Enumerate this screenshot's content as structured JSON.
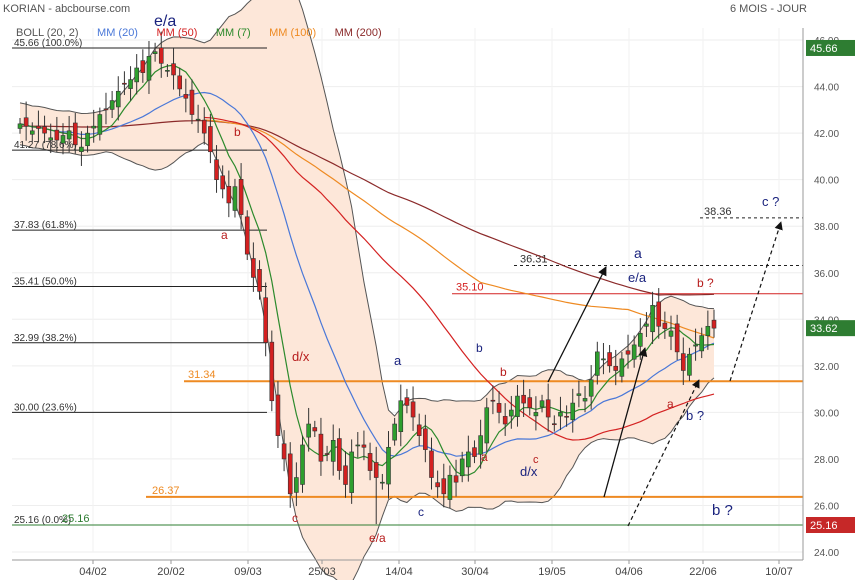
{
  "header": {
    "title": "KORIAN - abcbourse.com",
    "period": "6 MOIS - JOUR"
  },
  "indicators": [
    {
      "label": "BOLL (20, 2)",
      "color": "#555555"
    },
    {
      "label": "MM (20)",
      "color": "#4a78d8"
    },
    {
      "label": "MM (50)",
      "color": "#d42222"
    },
    {
      "label": "MM (7)",
      "color": "#2c8a2c"
    },
    {
      "label": "MM (100)",
      "color": "#ee8a22"
    },
    {
      "label": "MM (200)",
      "color": "#8b2a2a"
    }
  ],
  "colors": {
    "up": "#2e9e2e",
    "down": "#d42020",
    "boll_fill": "#fde7d9",
    "boll_line": "#555555",
    "mm7": "#2c8a2c",
    "mm20": "#4a78d8",
    "mm50": "#d42222",
    "mm100": "#ee8a22",
    "mm200": "#8b2a2a",
    "support": "#ee8a22",
    "last_price_bg": "#2e7d32",
    "low_price_bg": "#c62828",
    "wave_dark": "#1a237e",
    "wave_red": "#b71c1c"
  },
  "chart_data": {
    "type": "candlestick",
    "title": "KORIAN - abcbourse.com",
    "period": "6 MOIS - JOUR",
    "ylim": [
      24,
      46
    ],
    "y_ticks": [
      "24.00",
      "26.00",
      "28.00",
      "30.00",
      "32.00",
      "34.00",
      "36.00",
      "38.00",
      "40.00",
      "42.00",
      "44.00",
      "46.00"
    ],
    "x_ticks": [
      "04/02",
      "20/02",
      "09/03",
      "25/03",
      "14/04",
      "30/04",
      "19/05",
      "04/06",
      "22/06",
      "10/07"
    ],
    "last_price": "45.66",
    "last_close": "33.62",
    "low_price": "25.16",
    "fibonacci": [
      {
        "label": "45.66 (100.0%)",
        "value": 45.66
      },
      {
        "label": "41.27 (78.6%)",
        "value": 41.27
      },
      {
        "label": "37.83 (61.8%)",
        "value": 37.83
      },
      {
        "label": "35.41 (50.0%)",
        "value": 35.41
      },
      {
        "label": "32.99 (38.2%)",
        "value": 32.99
      },
      {
        "label": "30.00 (23.6%)",
        "value": 30.0
      },
      {
        "label": "25.16 (0.0%)",
        "value": 25.16
      }
    ],
    "levels": [
      {
        "label": "31.34",
        "value": 31.34
      },
      {
        "label": "26.37",
        "value": 26.37
      },
      {
        "label": "35.10",
        "value": 35.1
      },
      {
        "label": "36.31",
        "value": 36.31
      },
      {
        "label": "38.36",
        "value": 38.36
      },
      {
        "label": "25.16",
        "value": 25.16
      }
    ],
    "wave_labels": [
      "e/a",
      "b",
      "a",
      "d/x",
      "c",
      "a",
      "e/a",
      "b",
      "c",
      "b",
      "a",
      "c",
      "d/x",
      "a",
      "e/a",
      "b ?",
      "a",
      "b ?",
      "c ?",
      "b ?"
    ],
    "close": [
      42.4,
      42.3,
      42.1,
      42.2,
      42.0,
      41.8,
      41.7,
      41.9,
      42.1,
      41.5,
      41.4,
      42.0,
      42.3,
      42.8,
      43.0,
      43.4,
      43.8,
      44.1,
      44.3,
      44.8,
      44.6,
      45.3,
      45.5,
      45.0,
      44.7,
      44.5,
      43.9,
      43.5,
      42.8,
      42.6,
      42.0,
      41.2,
      40.0,
      39.6,
      39.0,
      39.7,
      38.5,
      36.8,
      35.8,
      35.2,
      33.0,
      30.5,
      29.0,
      28.0,
      26.5,
      27.2,
      28.6,
      29.5,
      29.2,
      27.9,
      28.2,
      28.8,
      27.5,
      26.9,
      28.3,
      28.6,
      28.5,
      27.5,
      27.2,
      27.0,
      28.5,
      29.5,
      30.5,
      30.3,
      29.8,
      29.0,
      28.4,
      27.2,
      26.8,
      26.5,
      27.3,
      27.0,
      28.0,
      28.3,
      28.1,
      29.0,
      30.2,
      30.5,
      30.0,
      29.5,
      30.1,
      30.7,
      30.4,
      30.2,
      30.0,
      30.5,
      29.8,
      29.5,
      30.0,
      29.8,
      30.4,
      30.8,
      30.6,
      31.4,
      32.6,
      32.3,
      32.0,
      31.8,
      32.3,
      32.5,
      32.9,
      33.4,
      33.8,
      34.6,
      33.7,
      33.6,
      33.5,
      32.6,
      31.8,
      32.5,
      32.9,
      33.3,
      33.7,
      33.62
    ],
    "series": [
      {
        "name": "BOLL (20, 2)"
      },
      {
        "name": "MM (20)"
      },
      {
        "name": "MM (50)"
      },
      {
        "name": "MM (7)"
      },
      {
        "name": "MM (100)"
      },
      {
        "name": "MM (200)"
      }
    ]
  }
}
